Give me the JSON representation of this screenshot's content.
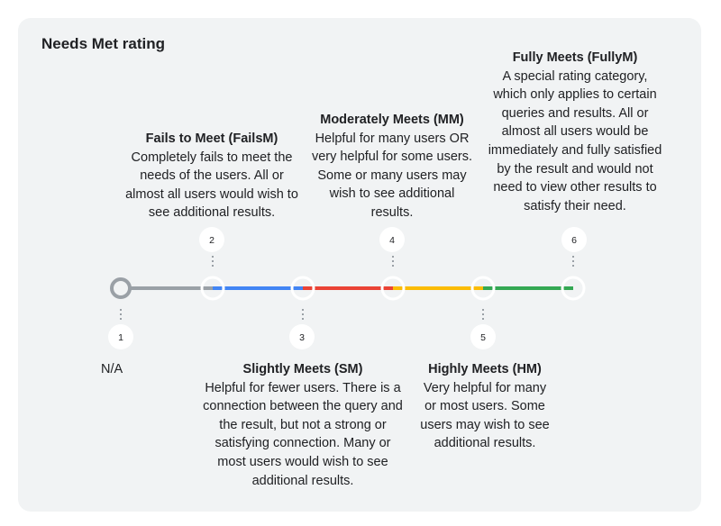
{
  "title": "Needs Met rating",
  "colors": {
    "gray": "#9aa0a6",
    "blue": "#4285f4",
    "red": "#ea4335",
    "yellow": "#fbbc04",
    "green": "#34a853"
  },
  "points": [
    {
      "number": "1",
      "name": "N/A",
      "description": ""
    },
    {
      "number": "2",
      "name": "Fails to Meet (FailsM)",
      "description": "Completely fails to meet the needs of the users. All or almost all users would wish to see additional results."
    },
    {
      "number": "3",
      "name": "Slightly Meets (SM)",
      "description": "Helpful for fewer users. There is a connection between the query and the result, but not a strong or satisfying connection. Many or most users would wish to see additional results."
    },
    {
      "number": "4",
      "name": "Moderately Meets (MM)",
      "description": "Helpful for many users OR very helpful for some users. Some or many users may wish to see additional results."
    },
    {
      "number": "5",
      "name": "Highly Meets (HM)",
      "description": "Very helpful for many or most users. Some users may wish to see additional results."
    },
    {
      "number": "6",
      "name": "Fully Meets (FullyM)",
      "description": "A special rating category, which only applies to certain queries and results. All or almost all users would be immediately and fully satisfied by the result and would not need to view other results to satisfy their need."
    }
  ]
}
